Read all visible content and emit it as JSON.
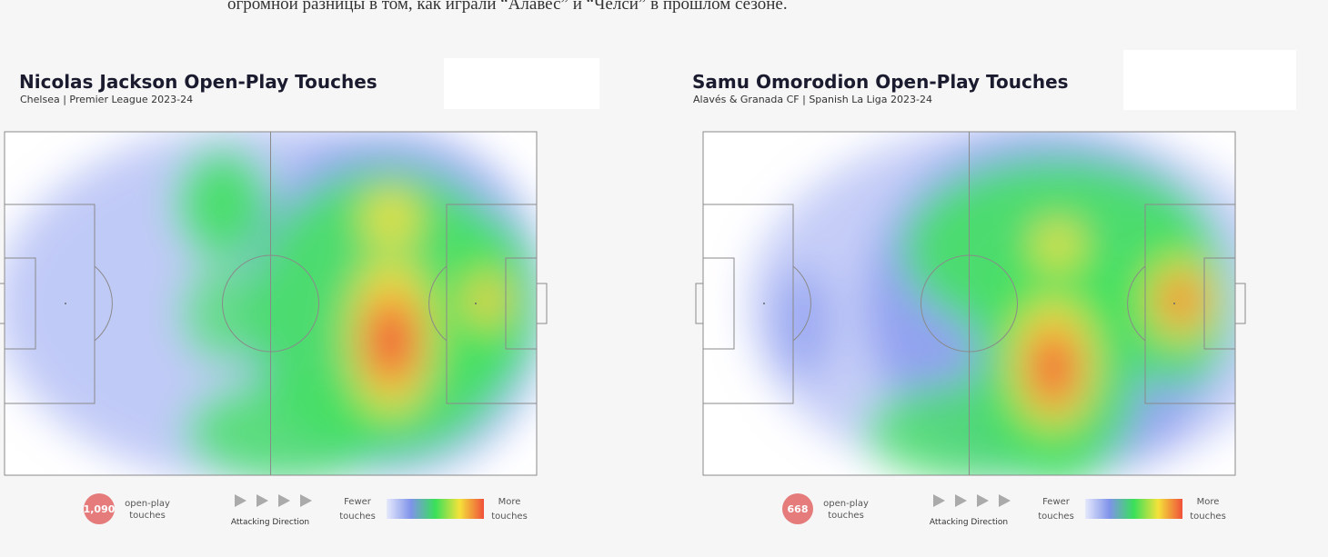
{
  "caption": "огромной разницы в том, как играли “Алавес” и “Челси” в прошлом сезоне.",
  "panels": [
    {
      "title": "Nicolas Jackson Open-Play Touches",
      "subtitle": "Chelsea | Premier League 2023-24",
      "touches": "1,090",
      "touches_label": [
        "open-play",
        "touches"
      ],
      "direction_label": "Attacking Direction",
      "scale_low": [
        "Fewer",
        "touches"
      ],
      "scale_high": [
        "More",
        "touches"
      ]
    },
    {
      "title": "Samu Omorodion Open-Play Touches",
      "subtitle": "Alavés & Granada CF | Spanish La Liga 2023-24",
      "touches": "668",
      "touches_label": [
        "open-play",
        "touches"
      ],
      "direction_label": "Attacking Direction",
      "scale_low": [
        "Fewer",
        "touches"
      ],
      "scale_high": [
        "More",
        "touches"
      ]
    }
  ]
}
